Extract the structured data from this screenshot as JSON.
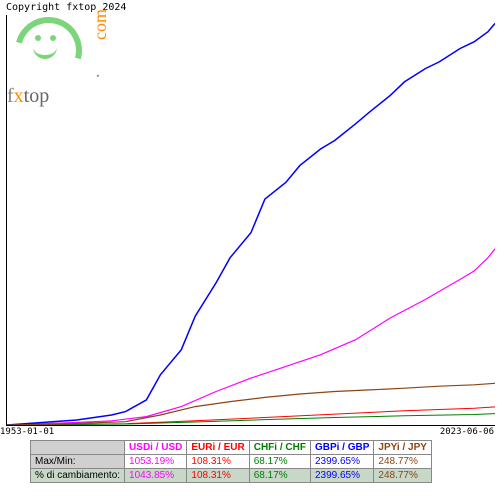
{
  "copyright": "Copyright fxtop 2024",
  "logo": {
    "brand_f": "f",
    "brand_x": "x",
    "brand_top": "top",
    "dot": ".",
    "com": "com"
  },
  "chart": {
    "type": "line",
    "x_start_label": "1953-01-01",
    "x_end_label": "2023-06-06",
    "background_color": "#ffffff",
    "axis_color": "#000000",
    "xlim": [
      1953,
      2023
    ],
    "ylim": [
      0,
      2450
    ],
    "series": [
      {
        "name": "USDi/USD",
        "color": "#ff00ff",
        "stroke_width": 1.2,
        "points": [
          [
            1953,
            0
          ],
          [
            1958,
            8
          ],
          [
            1963,
            15
          ],
          [
            1968,
            25
          ],
          [
            1973,
            50
          ],
          [
            1978,
            110
          ],
          [
            1983,
            200
          ],
          [
            1988,
            280
          ],
          [
            1993,
            350
          ],
          [
            1998,
            420
          ],
          [
            2003,
            510
          ],
          [
            2008,
            640
          ],
          [
            2013,
            750
          ],
          [
            2018,
            870
          ],
          [
            2020,
            920
          ],
          [
            2022,
            1000
          ],
          [
            2023,
            1053
          ]
        ]
      },
      {
        "name": "EURi/EUR",
        "color": "#ff0000",
        "stroke_width": 1.0,
        "points": [
          [
            1953,
            0
          ],
          [
            1960,
            3
          ],
          [
            1970,
            8
          ],
          [
            1980,
            25
          ],
          [
            1990,
            45
          ],
          [
            2000,
            65
          ],
          [
            2010,
            85
          ],
          [
            2020,
            100
          ],
          [
            2023,
            108
          ]
        ]
      },
      {
        "name": "CHFi/CHF",
        "color": "#008000",
        "stroke_width": 1.0,
        "points": [
          [
            1953,
            0
          ],
          [
            1960,
            2
          ],
          [
            1970,
            6
          ],
          [
            1980,
            18
          ],
          [
            1990,
            32
          ],
          [
            2000,
            45
          ],
          [
            2010,
            55
          ],
          [
            2020,
            63
          ],
          [
            2023,
            68
          ]
        ]
      },
      {
        "name": "GBPi/GBP",
        "color": "#0000ff",
        "stroke_width": 1.5,
        "points": [
          [
            1953,
            0
          ],
          [
            1958,
            15
          ],
          [
            1963,
            30
          ],
          [
            1968,
            60
          ],
          [
            1970,
            80
          ],
          [
            1973,
            150
          ],
          [
            1975,
            300
          ],
          [
            1978,
            450
          ],
          [
            1980,
            650
          ],
          [
            1983,
            850
          ],
          [
            1985,
            1000
          ],
          [
            1988,
            1150
          ],
          [
            1990,
            1350
          ],
          [
            1993,
            1450
          ],
          [
            1995,
            1550
          ],
          [
            1998,
            1650
          ],
          [
            2000,
            1700
          ],
          [
            2003,
            1800
          ],
          [
            2005,
            1870
          ],
          [
            2008,
            1970
          ],
          [
            2010,
            2050
          ],
          [
            2013,
            2130
          ],
          [
            2015,
            2170
          ],
          [
            2018,
            2250
          ],
          [
            2020,
            2290
          ],
          [
            2022,
            2350
          ],
          [
            2023,
            2400
          ]
        ]
      },
      {
        "name": "JPYi/JPY",
        "color": "#8b4513",
        "stroke_width": 1.2,
        "points": [
          [
            1953,
            0
          ],
          [
            1960,
            5
          ],
          [
            1970,
            20
          ],
          [
            1975,
            60
          ],
          [
            1980,
            110
          ],
          [
            1985,
            140
          ],
          [
            1990,
            165
          ],
          [
            1995,
            185
          ],
          [
            2000,
            200
          ],
          [
            2005,
            210
          ],
          [
            2010,
            220
          ],
          [
            2015,
            232
          ],
          [
            2020,
            240
          ],
          [
            2023,
            249
          ]
        ]
      }
    ]
  },
  "table": {
    "columns": [
      {
        "label": "USDi / USD",
        "color": "#ff00ff"
      },
      {
        "label": "EURi / EUR",
        "color": "#ff0000"
      },
      {
        "label": "CHFi / CHF",
        "color": "#008000"
      },
      {
        "label": "GBPi / GBP",
        "color": "#0000ff"
      },
      {
        "label": "JPYi / JPY",
        "color": "#8b4513"
      }
    ],
    "rows": [
      {
        "label": "Max/Min:",
        "values": [
          "1053.19%",
          "108.31%",
          "68.17%",
          "2399.65%",
          "248.77%"
        ]
      },
      {
        "label": "% di cambiamento:",
        "values": [
          "1043.85%",
          "108.31%",
          "68.17%",
          "2399.65%",
          "248.77%"
        ]
      }
    ]
  }
}
